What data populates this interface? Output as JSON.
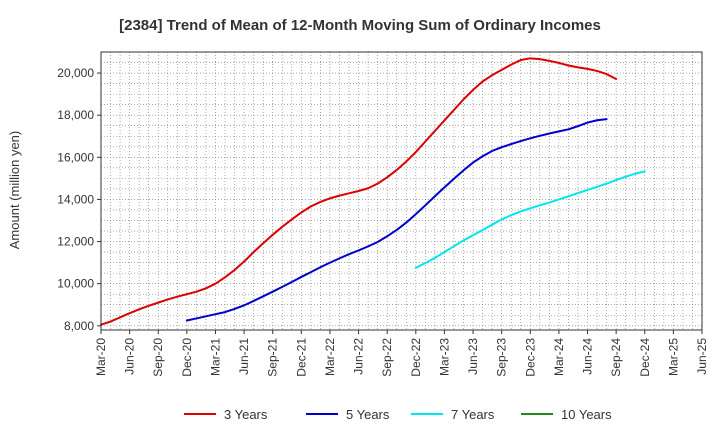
{
  "chart_data": {
    "type": "line",
    "title": "[2384]  Trend of Mean of 12-Month Moving Sum of Ordinary Incomes",
    "xlabel": "",
    "ylabel": "Amount (million yen)",
    "ylim": [
      7800,
      21000
    ],
    "yticks": [
      8000,
      10000,
      12000,
      14000,
      16000,
      18000,
      20000
    ],
    "ytick_labels": [
      "8,000",
      "10,000",
      "12,000",
      "14,000",
      "16,000",
      "18,000",
      "20,000"
    ],
    "xticks": [
      "Mar-20",
      "Jun-20",
      "Sep-20",
      "Dec-20",
      "Mar-21",
      "Jun-21",
      "Sep-21",
      "Dec-21",
      "Mar-22",
      "Jun-22",
      "Sep-22",
      "Dec-22",
      "Mar-23",
      "Jun-23",
      "Sep-23",
      "Dec-23",
      "Mar-24",
      "Jun-24",
      "Sep-24",
      "Dec-24",
      "Mar-25",
      "Jun-25"
    ],
    "grid": true,
    "legend_position": "bottom",
    "series": [
      {
        "name": "3 Years",
        "color": "#dd0000",
        "start_index": 0,
        "values": [
          8050,
          8200,
          8400,
          8600,
          8780,
          8950,
          9100,
          9250,
          9380,
          9500,
          9620,
          9780,
          10000,
          10300,
          10650,
          11050,
          11500,
          11920,
          12320,
          12700,
          13050,
          13380,
          13670,
          13880,
          14050,
          14180,
          14290,
          14400,
          14530,
          14750,
          15050,
          15400,
          15800,
          16250,
          16750,
          17250,
          17750,
          18250,
          18750,
          19200,
          19600,
          19900,
          20150,
          20400,
          20620,
          20700,
          20660,
          20580,
          20480,
          20360,
          20270,
          20200,
          20100,
          19950,
          19720
        ]
      },
      {
        "name": "5 Years",
        "color": "#0000cc",
        "start_index": 9,
        "values": [
          8250,
          8350,
          8450,
          8550,
          8650,
          8800,
          8970,
          9180,
          9400,
          9620,
          9850,
          10080,
          10320,
          10550,
          10780,
          11000,
          11200,
          11400,
          11580,
          11770,
          11980,
          12250,
          12550,
          12900,
          13300,
          13720,
          14150,
          14570,
          14980,
          15380,
          15750,
          16050,
          16300,
          16480,
          16630,
          16770,
          16900,
          17020,
          17130,
          17230,
          17330,
          17480,
          17650,
          17760,
          17810
        ]
      },
      {
        "name": "7 Years",
        "color": "#00e5ee",
        "start_index": 33,
        "values": [
          10750,
          10980,
          11220,
          11500,
          11780,
          12050,
          12300,
          12550,
          12800,
          13050,
          13250,
          13430,
          13580,
          13720,
          13850,
          14000,
          14150,
          14300,
          14450,
          14600,
          14750,
          14920,
          15080,
          15220,
          15330
        ]
      },
      {
        "name": "10 Years",
        "color": "#228822",
        "start_index": 0,
        "values": []
      }
    ]
  }
}
